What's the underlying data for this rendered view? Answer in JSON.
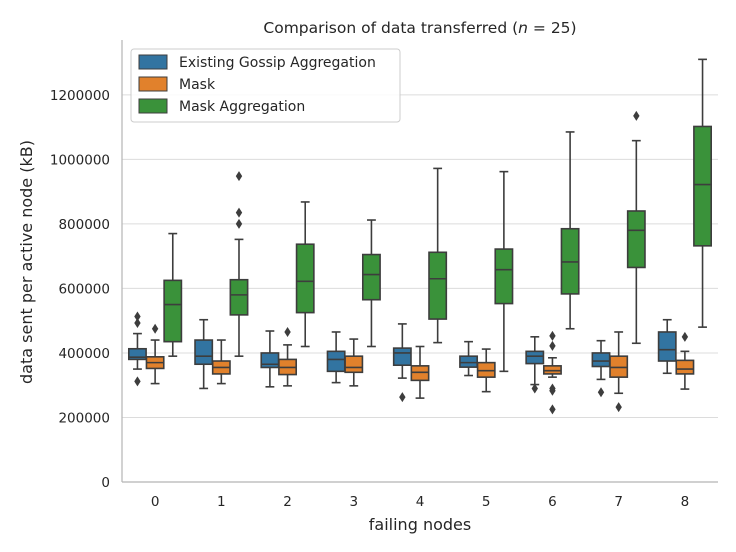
{
  "chart_data": {
    "type": "box",
    "title": "Comparison of data transferred ($n = 25$)",
    "title_parts": {
      "main": "Comparison of data transferred (",
      "var": "n",
      "rest": " = 25)"
    },
    "xlabel": "failing nodes",
    "ylabel": "data sent per active node (kB)",
    "ylim": [
      0,
      1370000
    ],
    "yticks": [
      0,
      200000,
      400000,
      600000,
      800000,
      1000000,
      1200000
    ],
    "ytick_labels": [
      "0",
      "200000",
      "400000",
      "600000",
      "800000",
      "1000000",
      "1200000"
    ],
    "categories": [
      "0",
      "1",
      "2",
      "3",
      "4",
      "5",
      "6",
      "7",
      "8"
    ],
    "grid": "horizontal",
    "legend_position": "top-left",
    "series": [
      {
        "name": "Existing Gossip Aggregation",
        "color": "#3274a1",
        "boxes": [
          {
            "whislo": 350000,
            "q1": 380000,
            "med": 387000,
            "q3": 413000,
            "whishi": 460000,
            "fliers": [
              513000,
              493000,
              312000
            ]
          },
          {
            "whislo": 290000,
            "q1": 365000,
            "med": 390000,
            "q3": 440000,
            "whishi": 503000,
            "fliers": []
          },
          {
            "whislo": 295000,
            "q1": 355000,
            "med": 365000,
            "q3": 400000,
            "whishi": 468000,
            "fliers": []
          },
          {
            "whislo": 308000,
            "q1": 343000,
            "med": 380000,
            "q3": 405000,
            "whishi": 465000,
            "fliers": []
          },
          {
            "whislo": 322000,
            "q1": 362000,
            "med": 400000,
            "q3": 415000,
            "whishi": 490000,
            "fliers": [
              263000
            ]
          },
          {
            "whislo": 330000,
            "q1": 356000,
            "med": 370000,
            "q3": 390000,
            "whishi": 435000,
            "fliers": []
          },
          {
            "whislo": 302000,
            "q1": 367000,
            "med": 390000,
            "q3": 405000,
            "whishi": 450000,
            "fliers": [
              290000
            ]
          },
          {
            "whislo": 318000,
            "q1": 358000,
            "med": 375000,
            "q3": 400000,
            "whishi": 438000,
            "fliers": [
              278000
            ]
          },
          {
            "whislo": 337000,
            "q1": 375000,
            "med": 410000,
            "q3": 465000,
            "whishi": 503000,
            "fliers": []
          }
        ]
      },
      {
        "name": "Mask",
        "color": "#e1812c",
        "boxes": [
          {
            "whislo": 305000,
            "q1": 352000,
            "med": 370000,
            "q3": 388000,
            "whishi": 440000,
            "fliers": [
              475000
            ]
          },
          {
            "whislo": 305000,
            "q1": 335000,
            "med": 355000,
            "q3": 375000,
            "whishi": 440000,
            "fliers": []
          },
          {
            "whislo": 298000,
            "q1": 333000,
            "med": 355000,
            "q3": 380000,
            "whishi": 425000,
            "fliers": [
              465000
            ]
          },
          {
            "whislo": 298000,
            "q1": 340000,
            "med": 355000,
            "q3": 390000,
            "whishi": 443000,
            "fliers": []
          },
          {
            "whislo": 260000,
            "q1": 315000,
            "med": 340000,
            "q3": 360000,
            "whishi": 420000,
            "fliers": []
          },
          {
            "whislo": 280000,
            "q1": 325000,
            "med": 345000,
            "q3": 370000,
            "whishi": 412000,
            "fliers": []
          },
          {
            "whislo": 325000,
            "q1": 335000,
            "med": 345000,
            "q3": 360000,
            "whishi": 385000,
            "fliers": [
              453000,
              422000,
              290000,
              283000,
              225000
            ]
          },
          {
            "whislo": 275000,
            "q1": 325000,
            "med": 355000,
            "q3": 390000,
            "whishi": 465000,
            "fliers": [
              232000
            ]
          },
          {
            "whislo": 288000,
            "q1": 335000,
            "med": 350000,
            "q3": 377000,
            "whishi": 405000,
            "fliers": [
              450000
            ]
          }
        ]
      },
      {
        "name": "Mask Aggregation",
        "color": "#3a923a",
        "boxes": [
          {
            "whislo": 390000,
            "q1": 435000,
            "med": 550000,
            "q3": 625000,
            "whishi": 770000,
            "fliers": []
          },
          {
            "whislo": 390000,
            "q1": 518000,
            "med": 580000,
            "q3": 627000,
            "whishi": 752000,
            "fliers": [
              948000,
              835000,
              800000
            ]
          },
          {
            "whislo": 420000,
            "q1": 525000,
            "med": 622000,
            "q3": 737000,
            "whishi": 868000,
            "fliers": []
          },
          {
            "whislo": 420000,
            "q1": 565000,
            "med": 643000,
            "q3": 705000,
            "whishi": 812000,
            "fliers": []
          },
          {
            "whislo": 432000,
            "q1": 505000,
            "med": 630000,
            "q3": 712000,
            "whishi": 972000,
            "fliers": []
          },
          {
            "whislo": 343000,
            "q1": 553000,
            "med": 658000,
            "q3": 722000,
            "whishi": 962000,
            "fliers": []
          },
          {
            "whislo": 475000,
            "q1": 583000,
            "med": 682000,
            "q3": 785000,
            "whishi": 1085000,
            "fliers": []
          },
          {
            "whislo": 430000,
            "q1": 665000,
            "med": 780000,
            "q3": 840000,
            "whishi": 1058000,
            "fliers": [
              1135000
            ]
          },
          {
            "whislo": 480000,
            "q1": 732000,
            "med": 922000,
            "q3": 1102000,
            "whishi": 1310000,
            "fliers": []
          }
        ]
      }
    ]
  }
}
